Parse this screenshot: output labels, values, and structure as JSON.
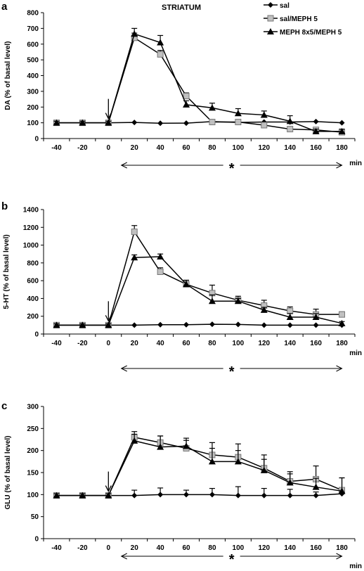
{
  "figure": {
    "title": "STRIATUM",
    "legend": [
      {
        "label": "sal",
        "marker": "diamond",
        "fill": "#000000"
      },
      {
        "label": "sal/MEPH 5",
        "marker": "square",
        "fill": "#c0c0c0"
      },
      {
        "label": "MEPH 8x5/MEPH 5",
        "marker": "triangle",
        "fill": "#000000"
      }
    ]
  },
  "chart_data": [
    {
      "type": "line",
      "panel": "a",
      "ylabel": "DA (% of basal level)",
      "xunit": "min",
      "ylim": [
        0,
        800
      ],
      "yticks": [
        0,
        100,
        200,
        300,
        400,
        500,
        600,
        700,
        800
      ],
      "x": [
        -40,
        -20,
        0,
        20,
        40,
        60,
        80,
        100,
        120,
        140,
        160,
        180
      ],
      "series": [
        {
          "name": "sal",
          "marker": "diamond",
          "values": [
            100,
            100,
            100,
            102,
            97,
            98,
            108,
            102,
            105,
            105,
            108,
            100
          ]
        },
        {
          "name": "sal/MEPH 5",
          "marker": "square",
          "values": [
            100,
            100,
            100,
            640,
            535,
            270,
            105,
            105,
            85,
            60,
            55,
            40
          ],
          "err_up": [
            10,
            10,
            10,
            30,
            25,
            20,
            15,
            15,
            15,
            15,
            15,
            15
          ]
        },
        {
          "name": "MEPH 8x5/MEPH 5",
          "marker": "triangle",
          "values": [
            100,
            100,
            100,
            665,
            610,
            215,
            195,
            160,
            150,
            110,
            45,
            45
          ],
          "err_up": [
            10,
            10,
            10,
            35,
            45,
            25,
            30,
            30,
            25,
            35,
            15,
            15
          ]
        }
      ],
      "arrow_at": 0,
      "star": "*"
    },
    {
      "type": "line",
      "panel": "b",
      "ylabel": "5-HT (% of basal level)",
      "xunit": "min",
      "ylim": [
        0,
        1400
      ],
      "yticks": [
        0,
        200,
        400,
        600,
        800,
        1000,
        1200,
        1400
      ],
      "x": [
        -40,
        -20,
        0,
        20,
        40,
        60,
        80,
        100,
        120,
        140,
        160,
        180
      ],
      "series": [
        {
          "name": "sal",
          "marker": "diamond",
          "values": [
            100,
            100,
            100,
            100,
            105,
            105,
            110,
            108,
            100,
            100,
            100,
            100
          ]
        },
        {
          "name": "sal/MEPH 5",
          "marker": "square",
          "values": [
            100,
            100,
            100,
            1150,
            700,
            560,
            460,
            380,
            320,
            260,
            220,
            220
          ],
          "err_up": [
            15,
            15,
            15,
            70,
            45,
            45,
            90,
            45,
            60,
            45,
            60,
            30
          ]
        },
        {
          "name": "MEPH 8x5/MEPH 5",
          "marker": "triangle",
          "values": [
            100,
            100,
            100,
            860,
            870,
            560,
            370,
            370,
            270,
            190,
            190,
            120
          ],
          "err_up": [
            15,
            15,
            15,
            30,
            30,
            45,
            70,
            30,
            30,
            40,
            40,
            20
          ]
        }
      ],
      "arrow_at": 0,
      "star": "*"
    },
    {
      "type": "line",
      "panel": "c",
      "ylabel": "GLU (% of basal level)",
      "xunit": "min",
      "ylim": [
        0,
        300
      ],
      "yticks": [
        0,
        50,
        100,
        150,
        200,
        250,
        300
      ],
      "x": [
        -40,
        -20,
        0,
        20,
        40,
        60,
        80,
        100,
        120,
        140,
        160,
        180
      ],
      "series": [
        {
          "name": "sal",
          "marker": "diamond",
          "values": [
            98,
            98,
            98,
            98,
            100,
            100,
            100,
            98,
            98,
            98,
            98,
            102
          ],
          "err_up": [
            4,
            4,
            4,
            12,
            15,
            10,
            14,
            20,
            16,
            14,
            8,
            8
          ]
        },
        {
          "name": "sal/MEPH 5",
          "marker": "square",
          "values": [
            98,
            98,
            98,
            230,
            218,
            205,
            190,
            185,
            160,
            130,
            135,
            110
          ],
          "err_up": [
            4,
            4,
            4,
            13,
            15,
            18,
            28,
            30,
            30,
            22,
            30,
            28
          ]
        },
        {
          "name": "MEPH 8x5/MEPH 5",
          "marker": "triangle",
          "values": [
            98,
            98,
            98,
            222,
            208,
            210,
            175,
            175,
            155,
            127,
            117,
            108
          ],
          "err_up": [
            4,
            4,
            4,
            15,
            25,
            18,
            30,
            25,
            25,
            20,
            20,
            30
          ]
        }
      ],
      "arrow_at": 0,
      "star": "*"
    }
  ]
}
